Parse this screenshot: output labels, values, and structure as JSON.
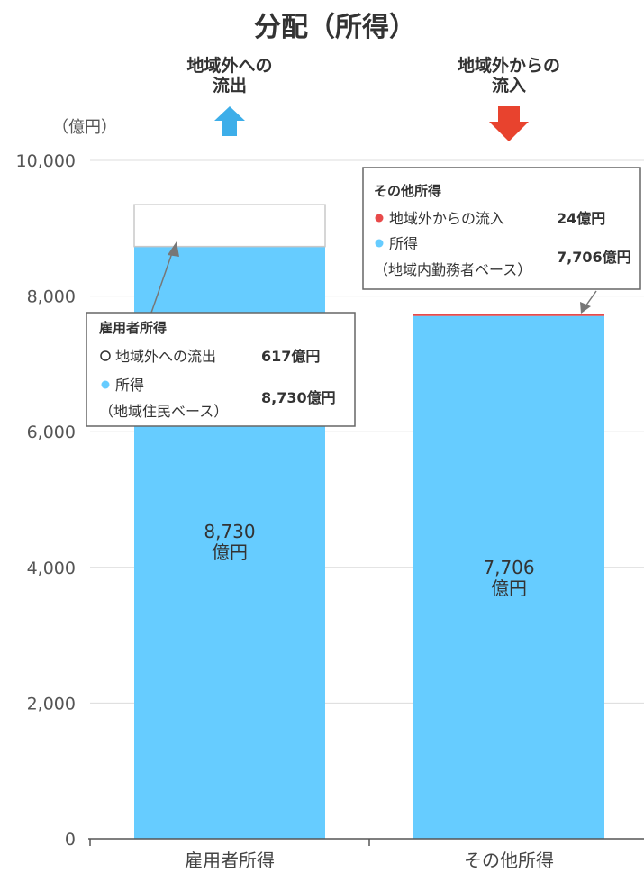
{
  "chart_data": {
    "type": "bar",
    "title": "分配（所得）",
    "unit_label": "（億円）",
    "y_ticks": [
      "10,000",
      "8,000",
      "6,000",
      "4,000",
      "2,000",
      "0"
    ],
    "ylim": [
      0,
      10000
    ],
    "grid": true,
    "categories": [
      "雇用者所得",
      "その他所得"
    ],
    "series": [
      {
        "name": "所得",
        "values": [
          8730,
          7706
        ],
        "color": "#66ccff"
      },
      {
        "name": "地域外への流出",
        "values": [
          617,
          0
        ],
        "color": "#ffffff"
      },
      {
        "name": "地域外からの流入",
        "values": [
          0,
          24
        ],
        "color": "#e84a4a"
      }
    ],
    "bar_labels": [
      {
        "value": "8,730",
        "unit": "億円"
      },
      {
        "value": "7,706",
        "unit": "億円"
      }
    ],
    "flow_headers": [
      {
        "line1": "地域外への",
        "line2": "流出",
        "arrow": "up-arrow-icon",
        "color": "#3daee9"
      },
      {
        "line1": "地域外からの",
        "line2": "流入",
        "arrow": "down-arrow-icon",
        "color": "#e8432e"
      }
    ],
    "annotations": [
      {
        "title": "雇用者所得",
        "rows": [
          {
            "marker": "hollow-circle",
            "label": "地域外への流出",
            "sublabel": "",
            "value": "617億円"
          },
          {
            "marker": "blue-dot",
            "label": "所得",
            "sublabel": "（地域住民ベース）",
            "value": "8,730億円"
          }
        ]
      },
      {
        "title": "その他所得",
        "rows": [
          {
            "marker": "red-dot",
            "label": "地域外からの流入",
            "sublabel": "",
            "value": "24億円"
          },
          {
            "marker": "blue-dot",
            "label": "所得",
            "sublabel": "（地域内勤務者ベース）",
            "value": "7,706億円"
          }
        ]
      }
    ]
  }
}
